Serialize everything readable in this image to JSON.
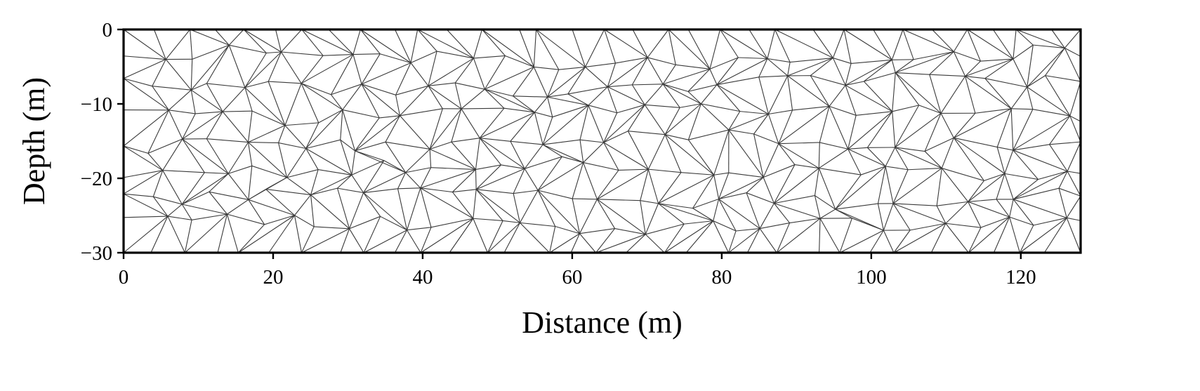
{
  "chart_data": {
    "type": "mesh",
    "xlabel": "Distance (m)",
    "ylabel": "Depth (m)",
    "xlim": [
      0,
      128
    ],
    "ylim": [
      -30,
      0
    ],
    "xticks": [
      {
        "value": 0,
        "label": "0"
      },
      {
        "value": 20,
        "label": "20"
      },
      {
        "value": 40,
        "label": "40"
      },
      {
        "value": 60,
        "label": "60"
      },
      {
        "value": 80,
        "label": "80"
      },
      {
        "value": 100,
        "label": "100"
      },
      {
        "value": 120,
        "label": "120"
      }
    ],
    "yticks": [
      {
        "value": 0,
        "label": "0"
      },
      {
        "value": -10,
        "label": "−10"
      },
      {
        "value": -20,
        "label": "−20"
      },
      {
        "value": -30,
        "label": "−30"
      }
    ],
    "grid": false,
    "mesh": {
      "element_type": "triangle",
      "approx_spacing_x": 4,
      "approx_spacing_y": 3.75,
      "edge_color": "#3a3a3a"
    }
  }
}
